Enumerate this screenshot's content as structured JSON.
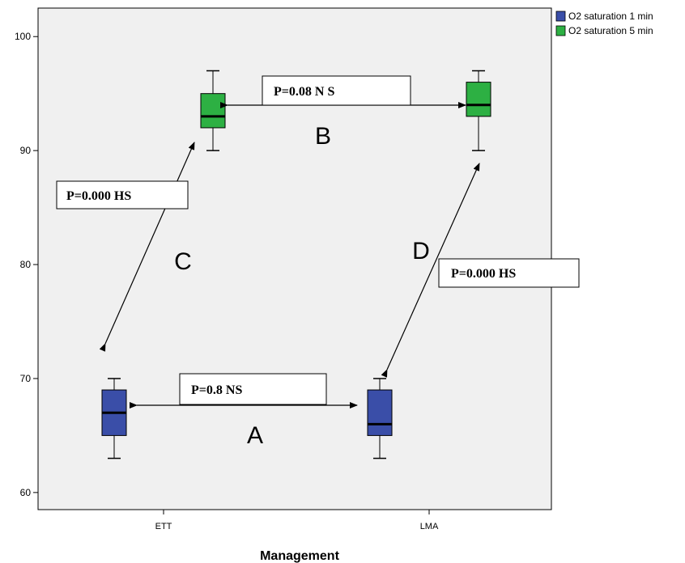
{
  "chart_data": {
    "type": "boxplot",
    "xlabel": "Management",
    "categories": [
      "ETT",
      "LMA"
    ],
    "ylim": [
      58.5,
      102.5
    ],
    "yticks": [
      60,
      70,
      80,
      90,
      100
    ],
    "grid": false,
    "legend_position": "top-right",
    "series": [
      {
        "name": "O2 saturation 1 min",
        "color": "#3a4ea8",
        "boxes": [
          {
            "category": "ETT",
            "min": 63,
            "q1": 65,
            "median": 67,
            "q3": 69,
            "max": 70
          },
          {
            "category": "LMA",
            "min": 63,
            "q1": 65,
            "median": 66,
            "q3": 69,
            "max": 70
          }
        ]
      },
      {
        "name": "O2 saturation 5 min",
        "color": "#2db043",
        "boxes": [
          {
            "category": "ETT",
            "min": 90,
            "q1": 92,
            "median": 93,
            "q3": 95,
            "max": 97
          },
          {
            "category": "LMA",
            "min": 90,
            "q1": 93,
            "median": 94,
            "q3": 96,
            "max": 97
          }
        ]
      }
    ],
    "annotations": [
      {
        "label": "A",
        "pvalue": "P=0.8 NS",
        "from": [
          "ETT",
          "O2 saturation 1 min"
        ],
        "to": [
          "LMA",
          "O2 saturation 1 min"
        ]
      },
      {
        "label": "B",
        "pvalue": "P=0.08 N S",
        "from": [
          "ETT",
          "O2 saturation 5 min"
        ],
        "to": [
          "LMA",
          "O2 saturation 5 min"
        ]
      },
      {
        "label": "C",
        "pvalue": "P=0.000 HS",
        "from": [
          "ETT",
          "O2 saturation 1 min"
        ],
        "to": [
          "ETT",
          "O2 saturation 5 min"
        ]
      },
      {
        "label": "D",
        "pvalue": "P=0.000 HS",
        "from": [
          "LMA",
          "O2 saturation 1 min"
        ],
        "to": [
          "LMA",
          "O2 saturation 5 min"
        ]
      }
    ]
  }
}
